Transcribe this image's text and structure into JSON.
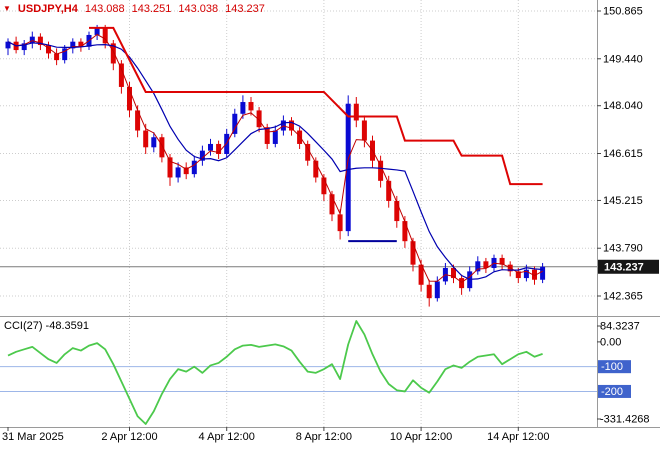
{
  "header": {
    "direction_icon": "▼",
    "symbol": "USDJPY,H4",
    "open": "143.088",
    "high": "143.251",
    "low": "143.038",
    "close": "143.237",
    "color": "#d40000"
  },
  "indicator_label": {
    "text": "CCI(27) -48.3591"
  },
  "price_axis": {
    "labels": [
      "150.865",
      "149.440",
      "148.040",
      "146.615",
      "145.215",
      "143.790",
      "142.365"
    ],
    "current_price": "143.237"
  },
  "cci_axis": {
    "labels": [
      {
        "text": "84.3237",
        "value": 84.3237,
        "badge": false
      },
      {
        "text": "0.00",
        "value": 0,
        "badge": false
      },
      {
        "text": "-100",
        "value": -100,
        "badge": true
      },
      {
        "text": "-200",
        "value": -200,
        "badge": true
      },
      {
        "text": "-331.4268",
        "value": -331.4268,
        "badge": false
      }
    ]
  },
  "time_axis": {
    "labels": [
      {
        "text": "31 Mar 2025",
        "bar": 0,
        "align": "left"
      },
      {
        "text": "2 Apr 12:00",
        "bar": 15,
        "align": "center"
      },
      {
        "text": "4 Apr 12:00",
        "bar": 27,
        "align": "center"
      },
      {
        "text": "8 Apr 12:00",
        "bar": 39,
        "align": "center"
      },
      {
        "text": "10 Apr 12:00",
        "bar": 51,
        "align": "center"
      },
      {
        "text": "14 Apr 12:00",
        "bar": 63,
        "align": "center"
      }
    ]
  },
  "chart_data": {
    "type": "candlestick",
    "symbol": "USDJPY",
    "timeframe": "H4",
    "title": "USDJPY,H4 143.088 143.251 143.038 143.237",
    "current_price": 143.237,
    "price_scale_labels": [
      150.865,
      149.44,
      148.04,
      146.615,
      145.215,
      143.79,
      142.365
    ],
    "colors": {
      "bull": "#0a0ad2",
      "bear": "#dd0404",
      "ma_fast": "#c00000",
      "ma_slow": "#0000b0",
      "trail": "#dd0404",
      "support": "#00009c",
      "cci": "#4cc94c",
      "grid": "#cdcdcd",
      "badge": "#3f63cc",
      "tag_bg": "#161616"
    },
    "candles": [
      [
        149.75,
        150.05,
        149.55,
        149.95
      ],
      [
        149.95,
        150.1,
        149.6,
        149.7
      ],
      [
        149.7,
        150.0,
        149.55,
        149.9
      ],
      [
        149.9,
        150.25,
        149.75,
        150.1
      ],
      [
        150.1,
        150.2,
        149.7,
        149.85
      ],
      [
        149.85,
        149.95,
        149.45,
        149.6
      ],
      [
        149.6,
        149.75,
        149.25,
        149.4
      ],
      [
        149.4,
        149.85,
        149.3,
        149.75
      ],
      [
        149.75,
        150.05,
        149.6,
        149.95
      ],
      [
        149.95,
        150.05,
        149.65,
        149.8
      ],
      [
        149.8,
        150.25,
        149.7,
        150.15
      ],
      [
        150.15,
        150.45,
        150.0,
        150.35
      ],
      [
        150.35,
        150.45,
        149.75,
        149.9
      ],
      [
        149.9,
        150.0,
        149.1,
        149.3
      ],
      [
        149.3,
        149.4,
        148.4,
        148.6
      ],
      [
        148.6,
        148.75,
        147.7,
        147.9
      ],
      [
        147.9,
        148.05,
        147.1,
        147.3
      ],
      [
        147.3,
        147.5,
        146.6,
        146.8
      ],
      [
        146.8,
        147.25,
        146.65,
        147.1
      ],
      [
        147.1,
        147.2,
        146.35,
        146.5
      ],
      [
        146.5,
        146.6,
        145.65,
        145.9
      ],
      [
        145.9,
        146.35,
        145.75,
        146.2
      ],
      [
        146.2,
        146.35,
        145.85,
        146.0
      ],
      [
        146.0,
        146.55,
        145.9,
        146.4
      ],
      [
        146.4,
        146.85,
        146.25,
        146.7
      ],
      [
        146.7,
        147.05,
        146.55,
        146.9
      ],
      [
        146.9,
        147.0,
        146.45,
        146.6
      ],
      [
        146.6,
        147.35,
        146.5,
        147.2
      ],
      [
        147.2,
        147.95,
        147.1,
        147.8
      ],
      [
        147.8,
        148.35,
        147.65,
        148.15
      ],
      [
        148.15,
        148.3,
        147.75,
        147.9
      ],
      [
        147.9,
        148.0,
        147.25,
        147.4
      ],
      [
        147.4,
        147.5,
        146.75,
        146.9
      ],
      [
        146.9,
        147.45,
        146.8,
        147.3
      ],
      [
        147.3,
        147.75,
        147.15,
        147.6
      ],
      [
        147.6,
        147.7,
        147.15,
        147.3
      ],
      [
        147.3,
        147.4,
        146.75,
        146.9
      ],
      [
        146.9,
        147.0,
        146.25,
        146.4
      ],
      [
        146.4,
        146.5,
        145.75,
        145.9
      ],
      [
        145.9,
        146.0,
        145.2,
        145.4
      ],
      [
        145.4,
        145.5,
        144.6,
        144.8
      ],
      [
        144.8,
        144.95,
        144.05,
        144.3
      ],
      [
        144.3,
        148.35,
        144.15,
        148.1
      ],
      [
        148.1,
        148.3,
        147.4,
        147.6
      ],
      [
        147.6,
        147.75,
        146.8,
        147.0
      ],
      [
        147.0,
        147.15,
        146.2,
        146.4
      ],
      [
        146.4,
        146.55,
        145.6,
        145.8
      ],
      [
        145.8,
        145.95,
        145.0,
        145.2
      ],
      [
        145.2,
        145.35,
        144.4,
        144.6
      ],
      [
        144.6,
        144.75,
        143.8,
        144.0
      ],
      [
        144.0,
        144.1,
        143.1,
        143.3
      ],
      [
        143.3,
        143.45,
        142.5,
        142.7
      ],
      [
        142.7,
        142.85,
        142.05,
        142.3
      ],
      [
        142.3,
        142.95,
        142.2,
        142.8
      ],
      [
        142.8,
        143.35,
        142.7,
        143.2
      ],
      [
        143.2,
        143.3,
        142.75,
        142.9
      ],
      [
        142.9,
        143.0,
        142.4,
        142.6
      ],
      [
        142.6,
        143.25,
        142.5,
        143.1
      ],
      [
        143.1,
        143.55,
        143.0,
        143.4
      ],
      [
        143.4,
        143.5,
        143.05,
        143.2
      ],
      [
        143.2,
        143.6,
        143.1,
        143.5
      ],
      [
        143.5,
        143.6,
        143.15,
        143.3
      ],
      [
        143.3,
        143.4,
        142.95,
        143.1
      ],
      [
        143.1,
        143.2,
        142.75,
        142.9
      ],
      [
        142.9,
        143.3,
        142.8,
        143.15
      ],
      [
        143.15,
        143.25,
        142.7,
        142.85
      ],
      [
        142.85,
        143.35,
        142.75,
        143.237
      ]
    ],
    "overlays": {
      "ma_fast": {
        "type": "ema",
        "period": 3
      },
      "ma_slow": {
        "type": "sma",
        "period": 8
      },
      "trail_stop": {
        "points": [
          [
            10,
            150.36
          ],
          [
            13,
            150.36
          ],
          [
            17,
            148.45
          ],
          [
            39,
            148.45
          ],
          [
            42,
            147.72
          ],
          [
            48,
            147.72
          ],
          [
            49,
            147.0
          ],
          [
            55,
            147.0
          ],
          [
            56,
            146.55
          ],
          [
            61,
            146.55
          ],
          [
            62,
            145.7
          ],
          [
            66,
            145.7
          ]
        ]
      },
      "support_segment": {
        "from_bar": 42,
        "to_bar": 48,
        "price": 144.0
      }
    },
    "cci": {
      "period": 27,
      "current": -48.3591,
      "max": 84.3237,
      "min": -331.4268,
      "levels": [
        -100,
        -200
      ],
      "values": [
        -55,
        -40,
        -30,
        -20,
        -45,
        -70,
        -85,
        -50,
        -25,
        -35,
        -15,
        -5,
        -30,
        -90,
        -160,
        -230,
        -300,
        -331.4268,
        -280,
        -210,
        -150,
        -110,
        -120,
        -100,
        -125,
        -95,
        -85,
        -60,
        -30,
        -15,
        -12,
        -20,
        -15,
        -10,
        -18,
        -35,
        -80,
        -120,
        -125,
        -110,
        -90,
        -150,
        -10,
        84.3237,
        30,
        -50,
        -120,
        -170,
        -195,
        -200,
        -155,
        -185,
        -205,
        -160,
        -110,
        -95,
        -105,
        -80,
        -60,
        -55,
        -50,
        -90,
        -70,
        -50,
        -40,
        -60,
        -48.3591
      ]
    }
  }
}
